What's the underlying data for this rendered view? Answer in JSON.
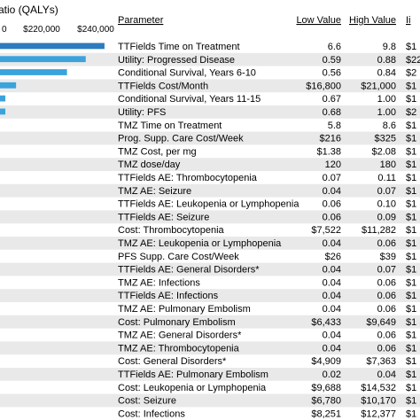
{
  "chart_data": {
    "type": "bar",
    "title": "atio (QALYs)",
    "xlabel": "",
    "ylabel": "",
    "x_ticks": [
      "0",
      "$220,000",
      "$240,000"
    ],
    "bar_colors": [
      "#2e7bbf",
      "#3aa3dc"
    ],
    "row_stripe_color": "#e9e9e9",
    "table_headers": {
      "parameter": "Parameter",
      "low": "Low Value",
      "high": "High Value",
      "partial": "Ii"
    },
    "categories": [
      "TTFields Time on Treatment",
      "Utility: Progressed Disease",
      "Conditional Survival, Years 6-10",
      "TTFields Cost/Month",
      "Conditional Survival, Years 11-15",
      "Utility: PFS",
      "TMZ Time on Treatment",
      "Prog. Supp. Care Cost/Week",
      "TMZ Cost, per mg",
      "TMZ dose/day",
      "TTFields AE: Thrombocytopenia",
      "TMZ AE: Seizure",
      "TTFields AE: Leukopenia or Lymphopenia",
      "TTFields AE: Seizure",
      "Cost: Thrombocytopenia",
      "TMZ AE: Leukopenia or Lymphopenia",
      "PFS Supp. Care Cost/Week",
      "TTFields AE: General Disorders*",
      "TMZ AE: Infections",
      "TTFields AE: Infections",
      "TMZ AE: Pulmonary Embolism",
      "Cost: Pulmonary Embolism",
      "TMZ AE: General Disorders*",
      "TMZ AE: Thrombocytopenia",
      "Cost: General Disorders*",
      "TTFields AE: Pulmonary Embolism",
      "Cost: Leukopenia or Lymphopenia",
      "Cost: Seizure",
      "Cost: Infections"
    ],
    "low_values": [
      "6.6",
      "0.59",
      "0.56",
      "$16,800",
      "0.67",
      "0.68",
      "5.8",
      "$216",
      "$1.38",
      "120",
      "0.07",
      "0.04",
      "0.06",
      "0.06",
      "$7,522",
      "0.04",
      "$26",
      "0.04",
      "0.04",
      "0.04",
      "0.04",
      "$6,433",
      "0.04",
      "0.04",
      "$4,909",
      "0.02",
      "$9,688",
      "$6,780",
      "$8,251"
    ],
    "high_values": [
      "9.8",
      "0.88",
      "0.84",
      "$21,000",
      "1.00",
      "1.00",
      "8.6",
      "$325",
      "$2.08",
      "180",
      "0.11",
      "0.07",
      "0.10",
      "0.09",
      "$11,282",
      "0.06",
      "$39",
      "0.07",
      "0.06",
      "0.06",
      "0.06",
      "$9,649",
      "0.06",
      "0.06",
      "$7,363",
      "0.04",
      "$14,532",
      "$10,170",
      "$12,377"
    ],
    "partial_values": [
      "$1",
      "$22",
      "$2",
      "$1",
      "$1",
      "$2",
      "$1",
      "$1",
      "$1",
      "$1",
      "$1",
      "$1",
      "$1",
      "$1",
      "$1",
      "$1",
      "$1",
      "$1",
      "$1",
      "$1",
      "$1",
      "$1",
      "$1",
      "$1",
      "$1",
      "$1",
      "$1",
      "$1",
      "$1"
    ],
    "bar_high_ends": [
      240000,
      233000,
      226000,
      207000,
      203000,
      203000,
      201000,
      201000,
      201000,
      201000,
      201000,
      201000,
      201000,
      201000,
      201000,
      201000,
      201000,
      201000,
      201000,
      201000,
      201000,
      201000,
      201000,
      201000,
      201000,
      201000,
      201000,
      201000,
      201000
    ],
    "bar_base": 200000,
    "xlim": [
      201000,
      243000
    ]
  }
}
